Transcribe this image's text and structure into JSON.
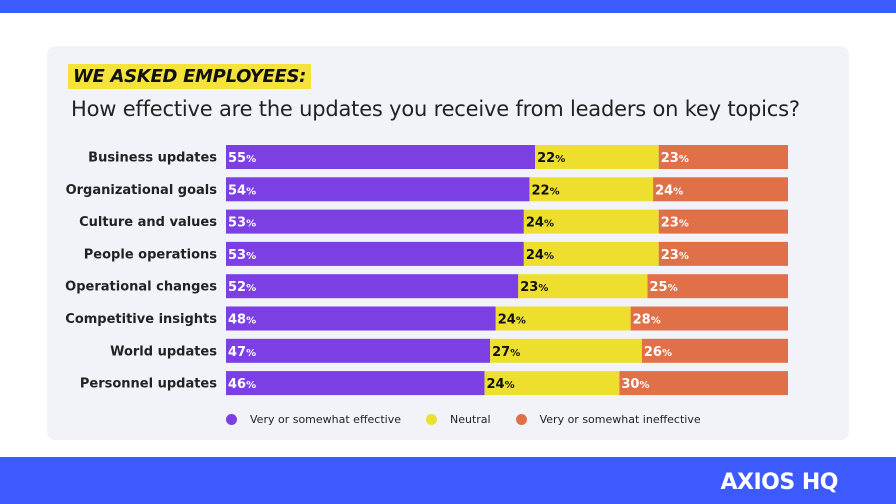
{
  "eyebrow": "WE ASKED EMPLOYEES:",
  "title": "How effective are the updates you receive from leaders on key topics?",
  "logo": "AXIOS HQ",
  "colors": {
    "effective": "#7b3fe4",
    "neutral": "#eedf2e",
    "ineffective": "#e07047",
    "brand": "#3d5afe"
  },
  "chart_data": {
    "type": "bar",
    "orientation": "horizontal-stacked-100",
    "categories": [
      "Business updates",
      "Organizational goals",
      "Culture and values",
      "People operations",
      "Operational changes",
      "Competitive insights",
      "World updates",
      "Personnel updates"
    ],
    "series": [
      {
        "name": "Very or somewhat effective",
        "values": [
          55,
          54,
          53,
          53,
          52,
          48,
          47,
          46
        ]
      },
      {
        "name": "Neutral",
        "values": [
          22,
          22,
          24,
          24,
          23,
          24,
          27,
          24
        ]
      },
      {
        "name": "Very or somewhat ineffective",
        "values": [
          23,
          24,
          23,
          23,
          25,
          28,
          26,
          30
        ]
      }
    ],
    "value_suffix": "%",
    "legend_position": "bottom",
    "title": "How effective are the updates you receive from leaders on key topics?",
    "xlabel": "",
    "ylabel": ""
  },
  "legend": [
    {
      "label": "Very or somewhat effective",
      "color": "#7b3fe4"
    },
    {
      "label": "Neutral",
      "color": "#eedf2e"
    },
    {
      "label": "Very or somewhat ineffective",
      "color": "#e07047"
    }
  ]
}
